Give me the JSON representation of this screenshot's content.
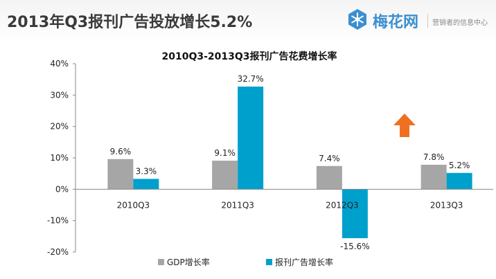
{
  "slide": {
    "title": "2013年Q3报刊广告投放增长5.2%"
  },
  "brand": {
    "name": "梅花网",
    "tagline": "营销者的信息中心",
    "logo_icon": "snowflake-icon"
  },
  "colors": {
    "series_gdp": "#a6a6a6",
    "series_ad": "#00a0cc",
    "arrow": "#f07020",
    "brand": "#3b8fd0"
  },
  "chart_data": {
    "type": "bar",
    "title": "2010Q3-2013Q3报刊广告花费增长率",
    "categories": [
      "2010Q3",
      "2011Q3",
      "2012Q3",
      "2013Q3"
    ],
    "series": [
      {
        "name": "GDP增长率",
        "values": [
          9.6,
          9.1,
          7.4,
          7.8
        ],
        "labels": [
          "9.6%",
          "9.1%",
          "7.4%",
          "7.8%"
        ]
      },
      {
        "name": "报刊广告增长率",
        "values": [
          3.3,
          32.7,
          -15.6,
          5.2
        ],
        "labels": [
          "3.3%",
          "32.7%",
          "-15.6%",
          "5.2%"
        ]
      }
    ],
    "ylim": [
      -20,
      40
    ],
    "yticks": [
      40,
      30,
      20,
      10,
      0,
      -10,
      -20
    ],
    "ytick_labels": [
      "40%",
      "30%",
      "20%",
      "10%",
      "0%",
      "-10%",
      "-20%"
    ],
    "xlabel": "",
    "ylabel": "",
    "legend_position": "bottom",
    "grid": false,
    "annotation_icon": "up-arrow-icon"
  }
}
